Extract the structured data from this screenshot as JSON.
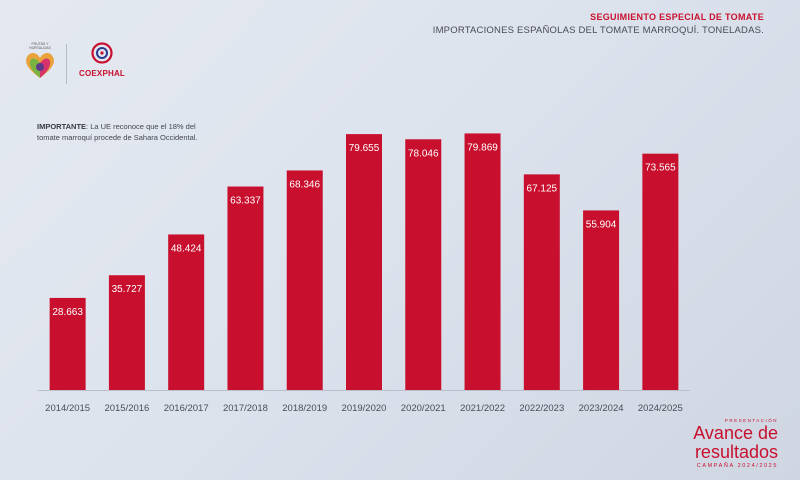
{
  "header": {
    "title": "SEGUIMIENTO ESPECIAL DE TOMATE",
    "subtitle": "IMPORTACIONES ESPAÑOLAS DEL TOMATE MARROQUÍ. TONELADAS."
  },
  "logos": {
    "left_text": "FRUTAS Y HORTALIZAS",
    "right_text": "COEXPHAL"
  },
  "note": {
    "strong": "IMPORTANTE",
    "text": ": La UE reconoce que el 18% del tomate marroquí procede de Sahara Occidental."
  },
  "branding": {
    "pretitle": "PRESENTACIÓN",
    "title_line1": "Avance de",
    "title_line2": "resultados",
    "campaign": "CAMPAÑA 2024/2025"
  },
  "colors": {
    "bar": "#c8102e",
    "title": "#c8102e"
  },
  "chart_data": {
    "type": "bar",
    "title": "IMPORTACIONES ESPAÑOLAS DEL TOMATE MARROQUÍ. TONELADAS.",
    "categories": [
      "2014/2015",
      "2015/2016",
      "2016/2017",
      "2017/2018",
      "2018/2019",
      "2019/2020",
      "2020/2021",
      "2021/2022",
      "2022/2023",
      "2023/2024",
      "2024/2025"
    ],
    "values": [
      28663,
      35727,
      48424,
      63337,
      68346,
      79655,
      78046,
      79869,
      67125,
      55904,
      73565
    ],
    "labels": [
      "28.663",
      "35.727",
      "48.424",
      "63.337",
      "68.346",
      "79.655",
      "78.046",
      "79.869",
      "67.125",
      "55.904",
      "73.565"
    ],
    "ylim": [
      0,
      80000
    ],
    "grid": false,
    "legend": "none"
  }
}
